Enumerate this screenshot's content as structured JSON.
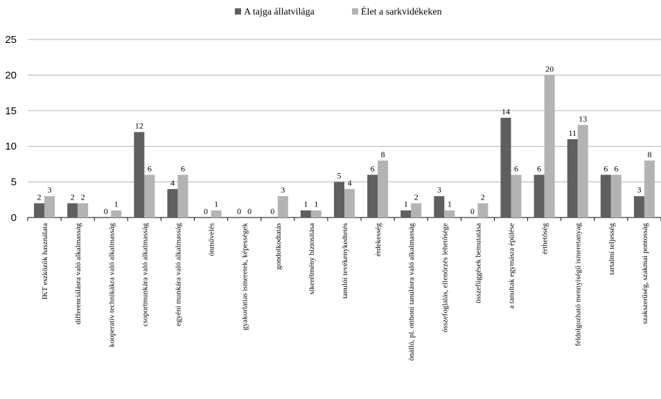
{
  "chart_data": {
    "type": "bar",
    "title": "",
    "xlabel": "",
    "ylabel": "",
    "ylim": [
      0,
      25
    ],
    "yticks": [
      0,
      5,
      10,
      15,
      20,
      25
    ],
    "grid": true,
    "legend_position": "top",
    "categories": [
      "IKT eszközök használata",
      "differenciálásra való alkalmasság",
      "kooperatív technikákra való alkalmasság",
      "csoportmunkára való alkalmasság",
      "egyéni munkára való alkalmasság",
      "önművelés",
      "gyakorlatias ismeretek, képességek",
      "gondolkodtatás",
      "sikerélmény biztosítása",
      "tanulói tevékenykedtetés",
      "érdekesség",
      "önálló, pl. otthoni tanulásra való alkalmasság",
      "összefoglalás, ellenőrzés lehetősége",
      "összefüggések bemutatása",
      "a tanultak egymásra épülése",
      "érthetőség",
      "feldolgozható mennyiségű ismeretanyag",
      "tartalmi teljesség",
      "szakszerűség, szakmai pontosság"
    ],
    "series": [
      {
        "name": "A tajga állatvilága",
        "color": "#5f5f5f",
        "values": [
          2,
          2,
          0,
          12,
          4,
          0,
          0,
          0,
          1,
          5,
          6,
          1,
          3,
          0,
          14,
          6,
          11,
          6,
          3
        ]
      },
      {
        "name": "Élet a sarkvidékeken",
        "color": "#b3b3b3",
        "values": [
          3,
          2,
          1,
          6,
          6,
          1,
          0,
          3,
          1,
          4,
          8,
          2,
          1,
          2,
          6,
          20,
          13,
          6,
          8
        ]
      }
    ]
  }
}
